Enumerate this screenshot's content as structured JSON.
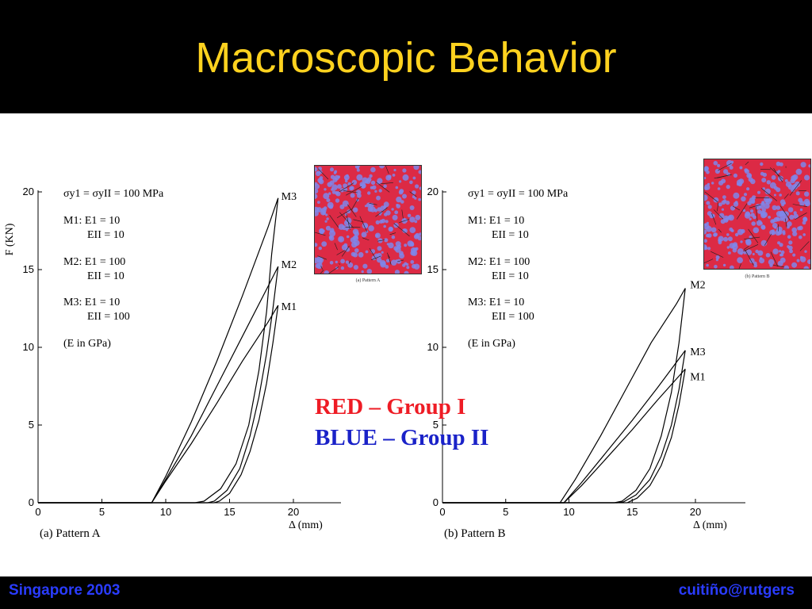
{
  "slide": {
    "title": "Macroscopic Behavior",
    "footer_left": "Singapore 2003",
    "footer_right": "cuitiño@rutgers",
    "legend": {
      "red_label": "RED – Group I",
      "blue_label": "BLUE – Group II",
      "red_color": "#ee1c25",
      "blue_color": "#1a22c8"
    },
    "title_color": "#ffd21f",
    "footer_color": "#2a3cff"
  },
  "insets": [
    {
      "caption": "(a) Pattern A",
      "colors": [
        "#dc2a45",
        "#7f86ea",
        "#1f1f1f"
      ]
    },
    {
      "caption": "(b) Pattern B",
      "colors": [
        "#dc2a45",
        "#7f86ea",
        "#1f1f1f"
      ]
    }
  ],
  "annotation": {
    "sigma_line": "σy1 = σyII = 100 MPa",
    "m1_line1": "M1: E1 = 10",
    "m1_line2": "EII = 10",
    "m2_line1": "M2: E1 = 100",
    "m2_line2": "EII = 10",
    "m3_line1": "M3: E1 = 10",
    "m3_line2": "EII = 100",
    "units_note": "(E in GPa)"
  },
  "chart_data": [
    {
      "type": "line",
      "caption": "(a) Pattern A",
      "ylabel": "F  (KN)",
      "xlabel": "Δ  (mm)",
      "xlim": [
        0,
        22
      ],
      "ylim": [
        0,
        20
      ],
      "xticks": [
        0,
        5,
        10,
        15,
        20
      ],
      "yticks": [
        0,
        5,
        10,
        15,
        20
      ],
      "series": [
        {
          "name": "M3",
          "loading": [
            [
              0,
              0
            ],
            [
              8.9,
              0
            ],
            [
              10,
              1.7
            ],
            [
              12,
              5.2
            ],
            [
              14,
              9.1
            ],
            [
              16,
              13.3
            ],
            [
              18,
              17.7
            ],
            [
              18.8,
              19.6
            ]
          ],
          "unloading": [
            [
              18.8,
              19.6
            ],
            [
              18.3,
              16
            ],
            [
              17.9,
              12.3
            ],
            [
              17.3,
              8.5
            ],
            [
              16.5,
              5
            ],
            [
              15.5,
              2.5
            ],
            [
              14.3,
              0.9
            ],
            [
              13,
              0.1
            ],
            [
              12.3,
              0
            ],
            [
              0,
              0
            ]
          ]
        },
        {
          "name": "M2",
          "loading": [
            [
              0,
              0
            ],
            [
              8.9,
              0
            ],
            [
              10,
              1.5
            ],
            [
              12,
              4.3
            ],
            [
              14,
              7.5
            ],
            [
              16,
              10.7
            ],
            [
              18,
              13.9
            ],
            [
              18.8,
              15.2
            ]
          ],
          "unloading": [
            [
              18.8,
              15.2
            ],
            [
              18.4,
              12.5
            ],
            [
              17.9,
              9.6
            ],
            [
              17.3,
              6.8
            ],
            [
              16.6,
              4.3
            ],
            [
              15.8,
              2.2
            ],
            [
              14.8,
              0.8
            ],
            [
              13.8,
              0.1
            ],
            [
              13.3,
              0
            ],
            [
              0,
              0
            ]
          ]
        },
        {
          "name": "M1",
          "loading": [
            [
              0,
              0
            ],
            [
              8.9,
              0
            ],
            [
              10,
              1.4
            ],
            [
              12,
              3.8
            ],
            [
              14,
              6.4
            ],
            [
              16,
              9.1
            ],
            [
              18,
              11.6
            ],
            [
              18.8,
              12.7
            ]
          ],
          "unloading": [
            [
              18.8,
              12.7
            ],
            [
              18.4,
              10.3
            ],
            [
              17.9,
              7.7
            ],
            [
              17.3,
              5.3
            ],
            [
              16.6,
              3.3
            ],
            [
              15.9,
              1.8
            ],
            [
              15,
              0.6
            ],
            [
              14.2,
              0.1
            ],
            [
              13.8,
              0
            ],
            [
              0,
              0
            ]
          ]
        }
      ]
    },
    {
      "type": "line",
      "caption": "(b) Pattern B",
      "ylabel": "",
      "xlabel": "Δ  (mm)",
      "xlim": [
        0,
        24
      ],
      "ylim": [
        0,
        20
      ],
      "xticks": [
        0,
        5,
        10,
        15,
        20
      ],
      "yticks": [
        0,
        5,
        10,
        15,
        20
      ],
      "series": [
        {
          "name": "M2",
          "loading": [
            [
              0,
              0
            ],
            [
              9.3,
              0
            ],
            [
              10.5,
              1.5
            ],
            [
              12.5,
              4.3
            ],
            [
              14.5,
              7.3
            ],
            [
              16.5,
              10.3
            ],
            [
              18.5,
              12.8
            ],
            [
              19.2,
              13.8
            ]
          ],
          "unloading": [
            [
              19.2,
              13.8
            ],
            [
              18.7,
              10.3
            ],
            [
              18.1,
              7.1
            ],
            [
              17.3,
              4.3
            ],
            [
              16.4,
              2.2
            ],
            [
              15.3,
              0.8
            ],
            [
              14.2,
              0.1
            ],
            [
              13.6,
              0
            ],
            [
              0,
              0
            ]
          ]
        },
        {
          "name": "M3",
          "loading": [
            [
              0,
              0
            ],
            [
              9.6,
              0
            ],
            [
              11,
              1.3
            ],
            [
              13,
              3.3
            ],
            [
              15,
              5.3
            ],
            [
              17,
              7.4
            ],
            [
              19.2,
              9.8
            ]
          ],
          "unloading": [
            [
              19.2,
              9.8
            ],
            [
              18.7,
              7.3
            ],
            [
              18.1,
              5
            ],
            [
              17.3,
              3
            ],
            [
              16.4,
              1.5
            ],
            [
              15.3,
              0.5
            ],
            [
              14.3,
              0.05
            ],
            [
              13.8,
              0
            ],
            [
              0,
              0
            ]
          ]
        },
        {
          "name": "M1",
          "loading": [
            [
              0,
              0
            ],
            [
              9.6,
              0
            ],
            [
              11,
              1.1
            ],
            [
              13,
              2.9
            ],
            [
              15,
              4.7
            ],
            [
              17,
              6.6
            ],
            [
              19.2,
              8.6
            ]
          ],
          "unloading": [
            [
              19.2,
              8.6
            ],
            [
              18.7,
              6.3
            ],
            [
              18.1,
              4.2
            ],
            [
              17.3,
              2.4
            ],
            [
              16.4,
              1.1
            ],
            [
              15.4,
              0.3
            ],
            [
              14.6,
              0
            ],
            [
              0,
              0
            ]
          ]
        }
      ]
    }
  ]
}
